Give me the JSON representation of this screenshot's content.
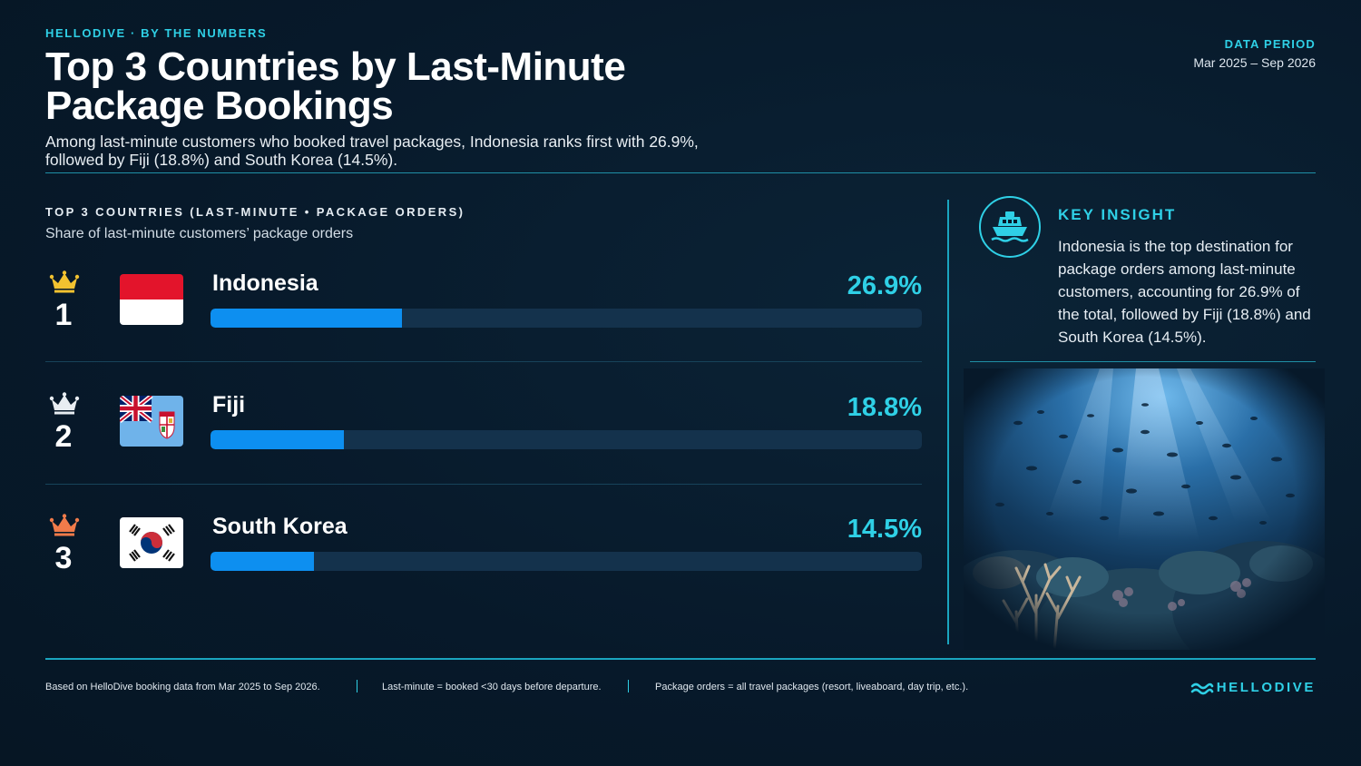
{
  "header": {
    "eyebrow": "HELLODIVE · BY THE NUMBERS",
    "title": "Top 3 Countries by Last-Minute Package Bookings",
    "subtitle": "Among last-minute customers who booked travel packages, Indonesia ranks first with 26.9%, followed by Fiji (18.8%) and South Korea (14.5%).",
    "period_label": "DATA PERIOD",
    "period_value": "Mar 2025 – Sep 2026"
  },
  "chart_data": {
    "type": "bar",
    "title": "TOP 3 COUNTRIES (LAST-MINUTE • PACKAGE ORDERS)",
    "subtitle": "Share of last-minute customers’ package orders",
    "categories": [
      "Indonesia",
      "Fiji",
      "South Korea"
    ],
    "values": [
      26.9,
      18.8,
      14.5
    ],
    "value_labels": [
      "26.9%",
      "18.8%",
      "14.5%"
    ],
    "ranks": [
      "1",
      "2",
      "3"
    ],
    "crown_colors": [
      "#f2c230",
      "#e8edf2",
      "#f07b4a"
    ],
    "flags": [
      "indonesia-flag",
      "fiji-flag",
      "south-korea-flag"
    ],
    "unit": "%",
    "xlim": [
      0,
      100
    ],
    "bar_color": "#0d8ff0",
    "track_color": "#14324c"
  },
  "insight": {
    "icon": "ship-icon",
    "label": "KEY INSIGHT",
    "text": "Indonesia is the top destination for package orders among last-minute customers, accounting for 26.9% of the total, followed by Fiji (18.8%) and South Korea (14.5%)."
  },
  "footer": {
    "notes": [
      "Based on HelloDive booking data from Mar 2025 to Sep 2026.",
      "Last-minute = booked <30 days before departure.",
      "Package orders = all travel packages (resort, liveaboard, day trip, etc.)."
    ],
    "brand": "HELLODIVE"
  },
  "colors": {
    "background": "#07192a",
    "accent": "#2fd0e6",
    "bar": "#0d8ff0"
  }
}
